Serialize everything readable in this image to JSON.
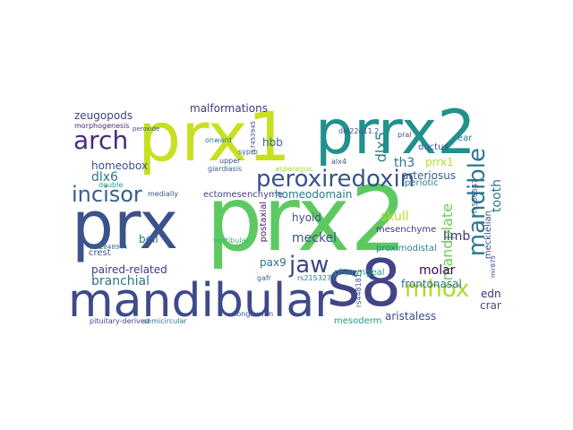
{
  "cloud": {
    "words": [
      {
        "text": "prx2",
        "color": "#5ec962"
      },
      {
        "text": "prx1",
        "color": "#c8e020"
      },
      {
        "text": "prrx2",
        "color": "#21918c"
      },
      {
        "text": "prx",
        "color": "#3b528b"
      },
      {
        "text": "mandibular",
        "color": "#3e4a89"
      },
      {
        "text": "s8",
        "color": "#414487"
      },
      {
        "text": "arch",
        "color": "#472c7a"
      },
      {
        "text": "incisor",
        "color": "#355f8d"
      },
      {
        "text": "peroxiredoxin",
        "color": "#3b528b"
      },
      {
        "text": "jaw",
        "color": "#404688"
      },
      {
        "text": "mhox",
        "color": "#addc30"
      },
      {
        "text": "mandible",
        "color": "#2a788e"
      },
      {
        "text": "mandplate",
        "color": "#6ccd5a"
      },
      {
        "text": "tooth",
        "color": "#2c728e"
      },
      {
        "text": "zeugopods",
        "color": "#433e85"
      },
      {
        "text": "malformations",
        "color": "#46327e"
      },
      {
        "text": "dlx5",
        "color": "#25848e"
      },
      {
        "text": "homeobox",
        "color": "#3b528b"
      },
      {
        "text": "dlx6",
        "color": "#2a788e"
      },
      {
        "text": "th3",
        "color": "#2c728e"
      },
      {
        "text": "prrx1",
        "color": "#b5de2b"
      },
      {
        "text": "hbb",
        "color": "#31688e"
      },
      {
        "text": "arteriosus",
        "color": "#355f8d"
      },
      {
        "text": "ectomesenchyme",
        "color": "#424086"
      },
      {
        "text": "homeodomain",
        "color": "#2a788e"
      },
      {
        "text": "skull",
        "color": "#c2df23"
      },
      {
        "text": "hyoid",
        "color": "#3b528b"
      },
      {
        "text": "meckel",
        "color": "#3b528b"
      },
      {
        "text": "limb",
        "color": "#46307e"
      },
      {
        "text": "paired-related",
        "color": "#443983"
      },
      {
        "text": "bell",
        "color": "#2e6e8e"
      },
      {
        "text": "pax9",
        "color": "#2e6f8e"
      },
      {
        "text": "branchial",
        "color": "#2a788e"
      },
      {
        "text": "postaxial",
        "color": "#481a6c"
      },
      {
        "text": "mesenchyme",
        "color": "#453781"
      },
      {
        "text": "molar",
        "color": "#440154"
      },
      {
        "text": "proximodistal",
        "color": "#27808e"
      },
      {
        "text": "frontonasal",
        "color": "#2c728e"
      },
      {
        "text": "crest",
        "color": "#3b528b"
      },
      {
        "text": "ednra",
        "color": "#472d7b"
      },
      {
        "text": "craniofacial",
        "color": "#3e4c8a"
      },
      {
        "text": "aristaless",
        "color": "#3e4989"
      },
      {
        "text": "mesoderm",
        "color": "#1f9e89"
      },
      {
        "text": "mecklelian",
        "color": "#3e4a89"
      },
      {
        "text": "pituitary-derived",
        "color": "#404588"
      },
      {
        "text": "semicircular",
        "color": "#2a788e"
      },
      {
        "text": "kongsuwan",
        "color": "#3b528b"
      },
      {
        "text": "medially",
        "color": "#3b528b"
      },
      {
        "text": "morphogenesis",
        "color": "#482878"
      },
      {
        "text": "pral",
        "color": "#3b528b"
      },
      {
        "text": "ear",
        "color": "#2c728e"
      },
      {
        "text": "ductus",
        "color": "#3b528b"
      },
      {
        "text": "periotic",
        "color": "#287d8e"
      },
      {
        "text": "upper",
        "color": "#3b528b"
      },
      {
        "text": "onward",
        "color": "#2a788e"
      },
      {
        "text": "sypro",
        "color": "#31688e"
      },
      {
        "text": "double",
        "color": "#1fa188"
      },
      {
        "text": "giardiasis",
        "color": "#34608d"
      },
      {
        "text": "asparagus",
        "color": "#a0da39"
      },
      {
        "text": "alx4",
        "color": "#3b528b"
      },
      {
        "text": "pharyngeal",
        "color": "#1e9b8a"
      },
      {
        "text": "vestibular",
        "color": "#35b779"
      },
      {
        "text": "gafr",
        "color": "#2c728e"
      },
      {
        "text": "rs2153271",
        "color": "#2a788e"
      },
      {
        "text": "rs4481811",
        "color": "#3b528b"
      },
      {
        "text": "rs556547",
        "color": "#3b528b"
      },
      {
        "text": "peroxide",
        "color": "#3b528b"
      },
      {
        "text": "del22q11.2",
        "color": "#3b528b"
      },
      {
        "text": "rs72848944",
        "color": "#2c728e"
      },
      {
        "text": "rs7453945",
        "color": "#3b528b"
      },
      {
        "text": "mir875",
        "color": "#3b528b"
      }
    ]
  }
}
